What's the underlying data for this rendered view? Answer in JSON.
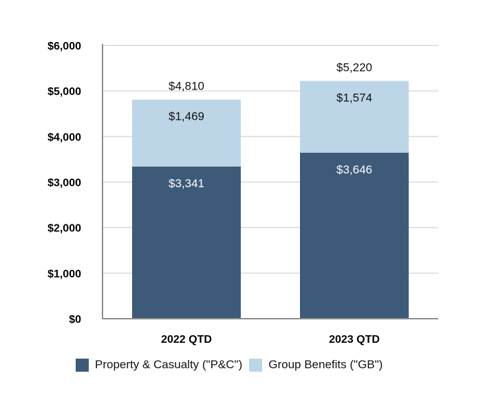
{
  "chart_data": {
    "type": "bar",
    "stacked": true,
    "categories": [
      "2022 QTD",
      "2023 QTD"
    ],
    "series": [
      {
        "name": "Property & Casualty (\"P&C\")",
        "values": [
          3341,
          3646
        ],
        "labels": [
          "$3,341",
          "$3,646"
        ],
        "color": "#3d5a78"
      },
      {
        "name": "Group Benefits (\"GB\")",
        "values": [
          1469,
          1574
        ],
        "labels": [
          "$1,469",
          "$1,574"
        ],
        "color": "#bcd6e8"
      }
    ],
    "totals": [
      4810,
      5220
    ],
    "total_labels": [
      "$4,810",
      "$5,220"
    ],
    "ylim": [
      0,
      6000
    ],
    "yticks": [
      0,
      1000,
      2000,
      3000,
      4000,
      5000,
      6000
    ],
    "ytick_labels": [
      "$0",
      "$1,000",
      "$2,000",
      "$3,000",
      "$4,000",
      "$5,000",
      "$6,000"
    ],
    "grid": true,
    "legend_position": "bottom"
  }
}
